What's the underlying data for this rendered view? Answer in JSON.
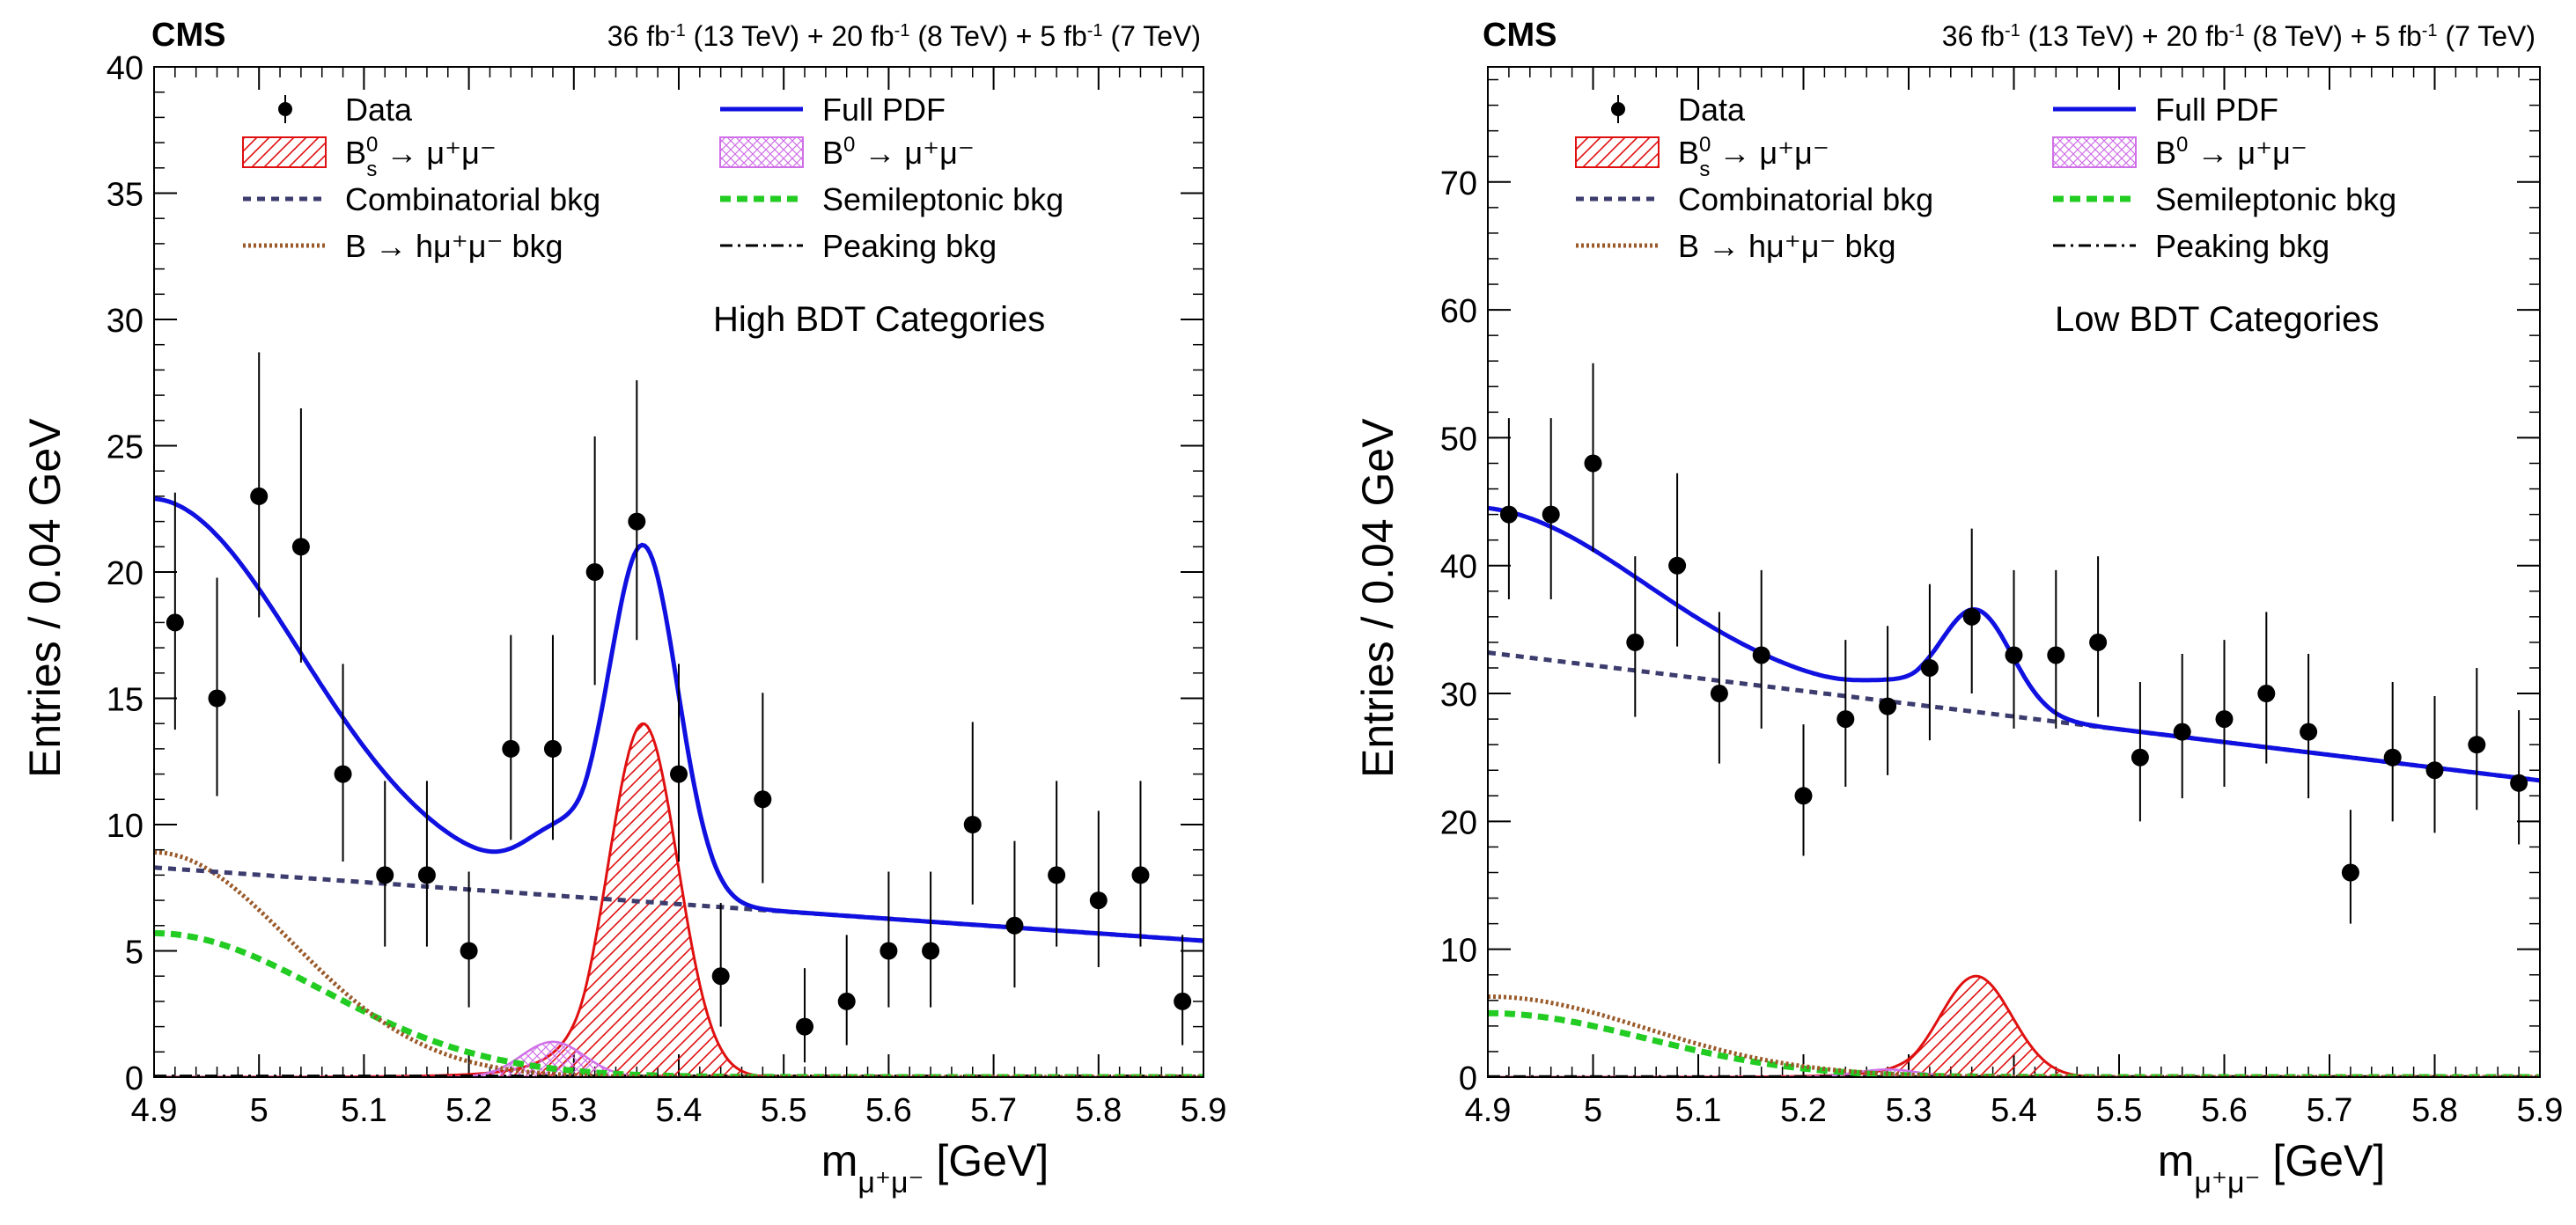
{
  "chart_data": [
    {
      "type": "scatter",
      "panel": "left",
      "experiment": "CMS",
      "lumi": {
        "l1": "36 fb",
        "e1": "-1",
        "r1": " (13 TeV) + 20 fb",
        "e2": "-1",
        "r2": " (8 TeV) + 5 fb",
        "e3": "-1",
        "r3": " (7 TeV)"
      },
      "category_label": "High BDT Categories",
      "xlabel": {
        "m": "m",
        "sub": "μ⁺μ⁻",
        "unit": " [GeV]"
      },
      "ylabel": "Entries / 0.04 GeV",
      "xlim": [
        4.9,
        5.9
      ],
      "ylim": [
        0,
        40
      ],
      "xticks": [
        4.9,
        5.0,
        5.1,
        5.2,
        5.3,
        5.4,
        5.5,
        5.6,
        5.7,
        5.8,
        5.9
      ],
      "xtick_labels": [
        "4.9",
        "5",
        "5.1",
        "5.2",
        "5.3",
        "5.4",
        "5.5",
        "5.6",
        "5.7",
        "5.8",
        "5.9"
      ],
      "yticks": [
        0,
        5,
        10,
        15,
        20,
        25,
        30,
        35,
        40
      ],
      "ytick_labels": [
        "0",
        "5",
        "10",
        "15",
        "20",
        "25",
        "30",
        "35",
        "40"
      ],
      "legend": {
        "data": "Data",
        "full_pdf": "Full PDF",
        "bs": {
          "b": "B",
          "sup": "0",
          "sub": "s",
          "rest": " → μ⁺μ⁻"
        },
        "bd": {
          "b": "B",
          "sup": "0",
          "rest": " → μ⁺μ⁻"
        },
        "comb": "Combinatorial bkg",
        "semi": "Semileptonic bkg",
        "peak": "Peaking bkg",
        "bh": "B → hμ⁺μ⁻ bkg"
      },
      "data_points": {
        "x": [
          4.92,
          4.96,
          5.0,
          5.04,
          5.08,
          5.12,
          5.16,
          5.2,
          5.24,
          5.28,
          5.32,
          5.36,
          5.4,
          5.44,
          5.48,
          5.52,
          5.56,
          5.6,
          5.64,
          5.68,
          5.72,
          5.76,
          5.8,
          5.84,
          5.88
        ],
        "y": [
          18,
          15,
          23,
          21,
          12,
          8,
          8,
          5,
          13,
          13,
          20,
          22,
          12,
          4,
          11,
          2,
          3,
          5,
          5,
          10,
          6,
          8,
          7,
          8,
          3
        ]
      },
      "components": {
        "combinatorial": {
          "y_at_4.9": 8.3,
          "y_at_5.9": 5.4
        },
        "semileptonic": {
          "amplitude": 5.7,
          "width": 0.16
        },
        "b_to_h": {
          "amplitude": 8.9,
          "width": 0.13
        },
        "bs_signal": {
          "mean": 5.366,
          "amplitude": 14.0,
          "sigma": 0.033
        },
        "bd_signal": {
          "mean": 5.28,
          "amplitude": 1.4,
          "sigma": 0.03
        }
      }
    },
    {
      "type": "scatter",
      "panel": "right",
      "experiment": "CMS",
      "lumi": {
        "l1": "36 fb",
        "e1": "-1",
        "r1": " (13 TeV) + 20 fb",
        "e2": "-1",
        "r2": " (8 TeV) + 5 fb",
        "e3": "-1",
        "r3": " (7 TeV)"
      },
      "category_label": "Low BDT Categories",
      "xlabel": {
        "m": "m",
        "sub": "μ⁺μ⁻",
        "unit": " [GeV]"
      },
      "ylabel": "Entries / 0.04 GeV",
      "xlim": [
        4.9,
        5.9
      ],
      "ylim": [
        0,
        79
      ],
      "xticks": [
        4.9,
        5.0,
        5.1,
        5.2,
        5.3,
        5.4,
        5.5,
        5.6,
        5.7,
        5.8,
        5.9
      ],
      "xtick_labels": [
        "4.9",
        "5",
        "5.1",
        "5.2",
        "5.3",
        "5.4",
        "5.5",
        "5.6",
        "5.7",
        "5.8",
        "5.9"
      ],
      "yticks": [
        0,
        10,
        20,
        30,
        40,
        50,
        60,
        70
      ],
      "ytick_labels": [
        "0",
        "10",
        "20",
        "30",
        "40",
        "50",
        "60",
        "70"
      ],
      "legend": {
        "data": "Data",
        "full_pdf": "Full PDF",
        "bs": {
          "b": "B",
          "sup": "0",
          "sub": "s",
          "rest": " → μ⁺μ⁻"
        },
        "bd": {
          "b": "B",
          "sup": "0",
          "rest": " → μ⁺μ⁻"
        },
        "comb": "Combinatorial bkg",
        "semi": "Semileptonic bkg",
        "peak": "Peaking bkg",
        "bh": "B → hμ⁺μ⁻ bkg"
      },
      "data_points": {
        "x": [
          4.92,
          4.96,
          5.0,
          5.04,
          5.08,
          5.12,
          5.16,
          5.2,
          5.24,
          5.28,
          5.32,
          5.36,
          5.4,
          5.44,
          5.48,
          5.52,
          5.56,
          5.6,
          5.64,
          5.68,
          5.72,
          5.76,
          5.8,
          5.84,
          5.88
        ],
        "y": [
          44,
          44,
          48,
          34,
          40,
          30,
          33,
          22,
          28,
          29,
          32,
          36,
          33,
          33,
          34,
          25,
          27,
          28,
          30,
          27,
          16,
          25,
          24,
          26,
          23
        ]
      },
      "components": {
        "combinatorial": {
          "y_at_4.9": 33.2,
          "y_at_5.9": 23.2
        },
        "semileptonic": {
          "amplitude": 5.0,
          "width": 0.15
        },
        "b_to_h": {
          "amplitude": 6.3,
          "width": 0.15
        },
        "bs_signal": {
          "mean": 5.364,
          "amplitude": 7.9,
          "sigma": 0.034
        },
        "bd_signal": {
          "mean": 5.28,
          "amplitude": 0.6,
          "sigma": 0.03
        }
      }
    }
  ]
}
